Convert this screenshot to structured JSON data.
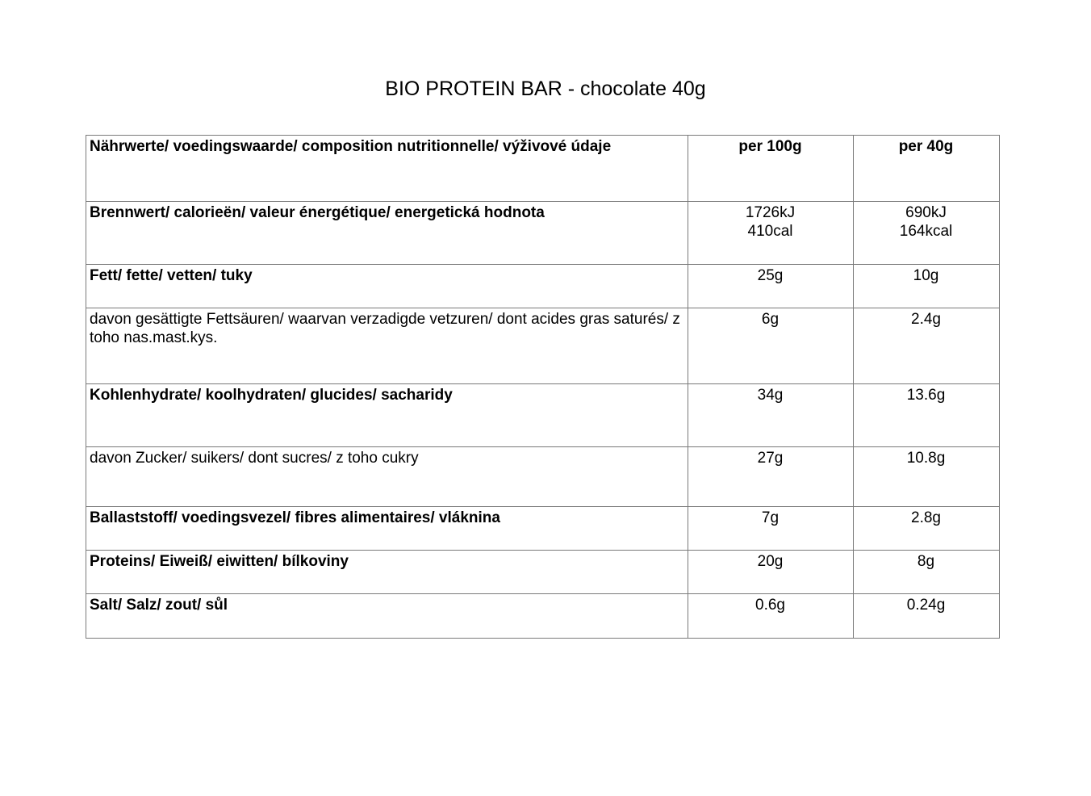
{
  "page": {
    "title": "BIO PROTEIN BAR - chocolate 40g"
  },
  "table": {
    "header": {
      "label": "Nährwerte/ voedingswaarde/ composition nutritionnelle/ výživové údaje",
      "per100": "per 100g",
      "per40": "per 40g"
    },
    "rows": [
      {
        "label": "Brennwert/ calorieën/  valeur énergétique/ energetická hodnota",
        "per100": "1726kJ\n410cal",
        "per40": "690kJ\n164kcal"
      },
      {
        "label": "Fett/ fette/ vetten/ tuky",
        "per100": "25g",
        "per40": "10g"
      },
      {
        "label": "davon gesättigte Fettsäuren/ waarvan verzadigde vetzuren/ dont acides gras saturés/ z toho nas.mast.kys.",
        "per100": "6g",
        "per40": "2.4g"
      },
      {
        "label": "Kohlenhydrate/ koolhydraten/ glucides/ sacharidy",
        "per100": "34g",
        "per40": "13.6g"
      },
      {
        "label": "davon Zucker/ suikers/ dont sucres/ z toho cukry",
        "per100": "27g",
        "per40": "10.8g"
      },
      {
        "label": "Ballaststoff/ voedingsvezel/ fibres alimentaires/ vláknina",
        "per100": "7g",
        "per40": "2.8g"
      },
      {
        "label": "Proteins/ Eiweiß/ eiwitten/ bílkoviny",
        "per100": "20g",
        "per40": "8g"
      },
      {
        "label": "Salt/ Salz/ zout/ sůl",
        "per100": "0.6g",
        "per40": "0.24g"
      }
    ]
  }
}
